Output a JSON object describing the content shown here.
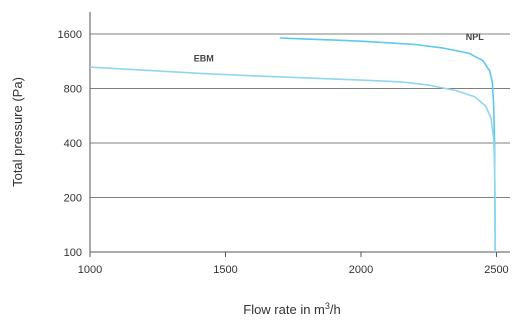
{
  "chart_data": {
    "type": "line",
    "xlabel": "Flow rate in m",
    "xlabel_sup": "3",
    "xlabel_suffix": "/h",
    "ylabel": "Total pressure (Pa)",
    "x_ticks": [
      "1000",
      "1500",
      "2000",
      "2500"
    ],
    "y_ticks": [
      "100",
      "200",
      "400",
      "800",
      "1600"
    ],
    "xlim": [
      1000,
      2550
    ],
    "ylim": [
      100,
      1600
    ],
    "y_scale": "log2",
    "grid": "horizontal",
    "colors": {
      "NPL": "#5ec8e8",
      "EBM": "#8fd6ee",
      "grid": "#555555",
      "axis": "#555555"
    },
    "series": [
      {
        "name": "NPL",
        "points": [
          [
            1700,
            1520
          ],
          [
            1800,
            1500
          ],
          [
            1900,
            1480
          ],
          [
            2000,
            1460
          ],
          [
            2100,
            1430
          ],
          [
            2200,
            1400
          ],
          [
            2300,
            1340
          ],
          [
            2400,
            1250
          ],
          [
            2450,
            1140
          ],
          [
            2475,
            1000
          ],
          [
            2485,
            860
          ],
          [
            2490,
            640
          ],
          [
            2493,
            400
          ],
          [
            2494,
            200
          ],
          [
            2495,
            110
          ],
          [
            2495,
            100
          ]
        ]
      },
      {
        "name": "EBM",
        "points": [
          [
            1000,
            1050
          ],
          [
            1200,
            1010
          ],
          [
            1400,
            970
          ],
          [
            1600,
            940
          ],
          [
            1800,
            915
          ],
          [
            2000,
            890
          ],
          [
            2150,
            870
          ],
          [
            2250,
            835
          ],
          [
            2350,
            780
          ],
          [
            2420,
            720
          ],
          [
            2460,
            640
          ],
          [
            2480,
            550
          ],
          [
            2490,
            420
          ],
          [
            2493,
            300
          ],
          [
            2495,
            180
          ],
          [
            2496,
            100
          ]
        ]
      }
    ]
  }
}
